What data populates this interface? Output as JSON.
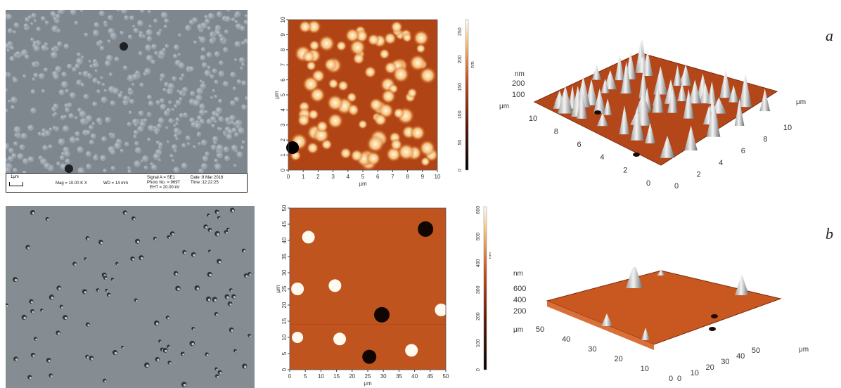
{
  "figure": {
    "panels": [
      {
        "label": "a",
        "sem": {
          "scale": "1μm",
          "mag": "Mag = 10.00 K X",
          "wd": "WD = 14 mm",
          "signal": "Signal A = SE1",
          "photo": "Photo No. = 9697",
          "eht": "EHT = 20.00 kV",
          "date": "Date :9 Mar 2016",
          "time": "Time :12:22:25"
        },
        "afm2d": {
          "ticks": [
            "0",
            "1",
            "2",
            "3",
            "4",
            "5",
            "6",
            "7",
            "8",
            "9",
            "10"
          ],
          "axis_unit": "μm",
          "colorbar_ticks": [
            "0",
            "50",
            "100",
            "150",
            "200",
            "250"
          ],
          "colorbar_unit": "nm"
        },
        "afm3d": {
          "z_unit": "nm",
          "z_ticks": [
            "100",
            "200"
          ],
          "y_unit": "μm",
          "x_unit": "μm",
          "x_ticks": [
            "0",
            "2",
            "4",
            "6",
            "8",
            "10"
          ],
          "y_ticks": [
            "0",
            "2",
            "4",
            "6",
            "8",
            "10"
          ]
        }
      },
      {
        "label": "b",
        "afm2d": {
          "ticks": [
            "0",
            "5",
            "10",
            "15",
            "20",
            "25",
            "30",
            "35",
            "40",
            "45",
            "50"
          ],
          "axis_unit": "μm",
          "colorbar_ticks": [
            "0",
            "100",
            "200",
            "300",
            "400",
            "500",
            "600"
          ],
          "colorbar_unit": "nm"
        },
        "afm3d": {
          "z_unit": "nm",
          "z_ticks": [
            "200",
            "400",
            "600"
          ],
          "y_unit": "μm",
          "x_unit": "μm",
          "x_ticks": [
            "0",
            "10",
            "20",
            "30",
            "40",
            "50"
          ],
          "y_ticks": [
            "0",
            "10",
            "20",
            "30",
            "40",
            "50"
          ]
        }
      }
    ],
    "colors": {
      "afm_dark": "#5a1405",
      "afm_mid": "#c24d1c",
      "afm_light": "#f6c27a",
      "afm_bright": "#fff8e6",
      "sem_gray": "#7f878e"
    }
  }
}
